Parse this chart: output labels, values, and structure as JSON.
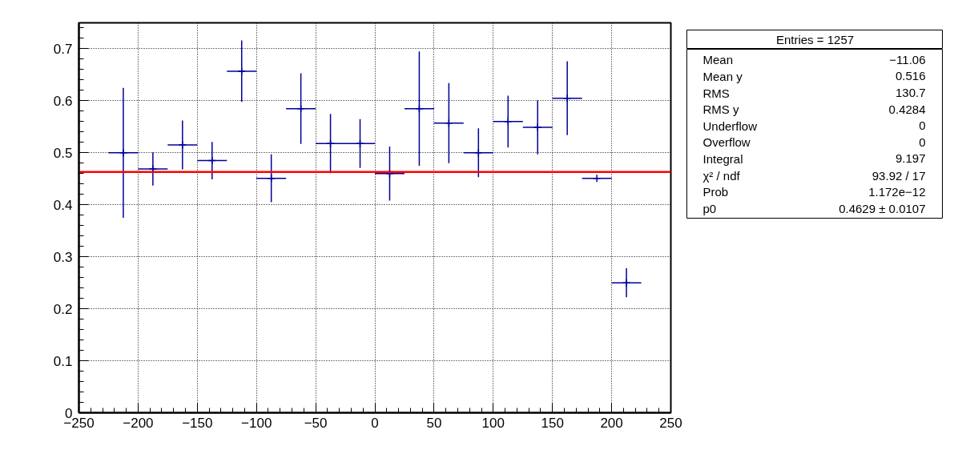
{
  "chart_data": {
    "type": "scatter",
    "xlim": [
      -250,
      250
    ],
    "ylim": [
      0,
      0.75
    ],
    "xticks": [
      {
        "value": -250,
        "label": "−250"
      },
      {
        "value": -200,
        "label": "−200"
      },
      {
        "value": -150,
        "label": "−150"
      },
      {
        "value": -100,
        "label": "−100"
      },
      {
        "value": -50,
        "label": "−50"
      },
      0,
      50,
      100,
      150,
      200,
      250
    ],
    "yticks": [
      0,
      0.1,
      0.2,
      0.3,
      0.4,
      0.5,
      0.6,
      0.7
    ],
    "grid": true,
    "series": [
      {
        "color": "#000099",
        "marker": "cross",
        "x": [
          -212.5,
          -187.5,
          -162.5,
          -137.5,
          -112.5,
          -87.5,
          -62.5,
          -37.5,
          -12.5,
          12.5,
          37.5,
          62.5,
          87.5,
          112.5,
          137.5,
          162.5,
          187.5,
          212.5
        ],
        "values": [
          0.5,
          0.469,
          0.515,
          0.485,
          0.657,
          0.451,
          0.585,
          0.518,
          0.518,
          0.46,
          0.585,
          0.557,
          0.5,
          0.56,
          0.549,
          0.605,
          0.451,
          0.25
        ],
        "errors": [
          0.125,
          0.032,
          0.047,
          0.036,
          0.059,
          0.046,
          0.068,
          0.057,
          0.047,
          0.052,
          0.11,
          0.077,
          0.047,
          0.05,
          0.052,
          0.071,
          null,
          0.028
        ],
        "xerrors": [
          12.5,
          12.5,
          12.5,
          12.5,
          12.5,
          12.5,
          12.5,
          12.5,
          12.5,
          12.5,
          12.5,
          12.5,
          12.5,
          12.5,
          12.5,
          12.5,
          12.5,
          12.5
        ]
      },
      {
        "type": "line",
        "color": "#ff0000",
        "x": [
          -250,
          250
        ],
        "values": [
          0.463,
          0.463
        ]
      }
    ],
    "annotations": [
      "Entries = 1257",
      "Mean",
      "−11.06",
      "Mean y",
      "0.516",
      "RMS",
      "130.7",
      "RMS y",
      "0.4284",
      "Underflow",
      "0",
      "Overflow",
      "0",
      "Integral",
      "9.197",
      "χ² / ndf",
      "93.92 / 17",
      "Prob",
      "1.172e−12",
      "p0",
      "0.4629 ± 0.0107"
    ]
  }
}
